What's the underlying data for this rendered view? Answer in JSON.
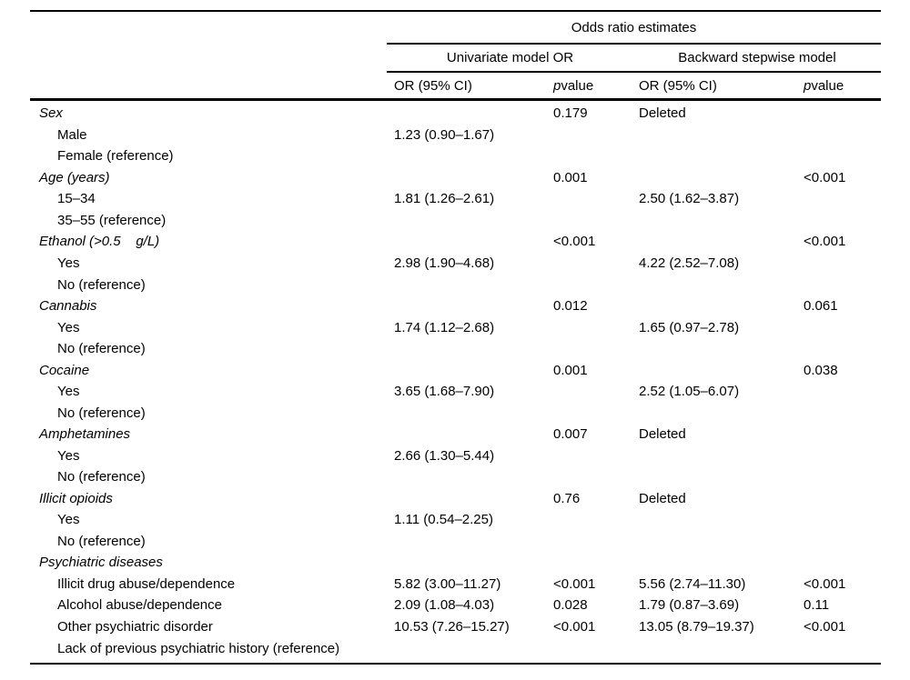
{
  "header": {
    "spanner": "Odds ratio estimates",
    "group_univariate": "Univariate model OR",
    "group_backward": "Backward stepwise model",
    "or_ci": "OR (95% CI)",
    "p": "p",
    "value": " value"
  },
  "rows": [
    {
      "style": "category",
      "label": "Sex",
      "univariate_or": "",
      "univariate_p": "0.179",
      "backward_or": "Deleted",
      "backward_p": ""
    },
    {
      "style": "item",
      "label": "Male",
      "univariate_or": "1.23 (0.90–1.67)",
      "univariate_p": "",
      "backward_or": "",
      "backward_p": ""
    },
    {
      "style": "item",
      "label": "Female (reference)",
      "univariate_or": "",
      "univariate_p": "",
      "backward_or": "",
      "backward_p": ""
    },
    {
      "style": "category",
      "label": "Age (years)",
      "univariate_or": "",
      "univariate_p": "0.001",
      "backward_or": "",
      "backward_p": "<0.001"
    },
    {
      "style": "item",
      "label": "15–34",
      "univariate_or": "1.81 (1.26–2.61)",
      "univariate_p": "",
      "backward_or": "2.50 (1.62–3.87)",
      "backward_p": ""
    },
    {
      "style": "item",
      "label": "35–55 (reference)",
      "univariate_or": "",
      "univariate_p": "",
      "backward_or": "",
      "backward_p": ""
    },
    {
      "style": "category",
      "label": "Ethanol (>0.5    g/L)",
      "univariate_or": "",
      "univariate_p": "<0.001",
      "backward_or": "",
      "backward_p": "<0.001"
    },
    {
      "style": "item",
      "label": "Yes",
      "univariate_or": "2.98 (1.90–4.68)",
      "univariate_p": "",
      "backward_or": "4.22 (2.52–7.08)",
      "backward_p": ""
    },
    {
      "style": "item",
      "label": "No (reference)",
      "univariate_or": "",
      "univariate_p": "",
      "backward_or": "",
      "backward_p": ""
    },
    {
      "style": "category",
      "label": "Cannabis",
      "univariate_or": "",
      "univariate_p": "0.012",
      "backward_or": "",
      "backward_p": "0.061"
    },
    {
      "style": "item",
      "label": "Yes",
      "univariate_or": "1.74 (1.12–2.68)",
      "univariate_p": "",
      "backward_or": "1.65 (0.97–2.78)",
      "backward_p": ""
    },
    {
      "style": "item",
      "label": "No (reference)",
      "univariate_or": "",
      "univariate_p": "",
      "backward_or": "",
      "backward_p": ""
    },
    {
      "style": "category",
      "label": "Cocaine",
      "univariate_or": "",
      "univariate_p": "0.001",
      "backward_or": "",
      "backward_p": "0.038"
    },
    {
      "style": "item",
      "label": "Yes",
      "univariate_or": "3.65 (1.68–7.90)",
      "univariate_p": "",
      "backward_or": "2.52 (1.05–6.07)",
      "backward_p": ""
    },
    {
      "style": "item",
      "label": "No (reference)",
      "univariate_or": "",
      "univariate_p": "",
      "backward_or": "",
      "backward_p": ""
    },
    {
      "style": "category",
      "label": "Amphetamines",
      "univariate_or": "",
      "univariate_p": "0.007",
      "backward_or": "Deleted",
      "backward_p": ""
    },
    {
      "style": "item",
      "label": "Yes",
      "univariate_or": "2.66 (1.30–5.44)",
      "univariate_p": "",
      "backward_or": "",
      "backward_p": ""
    },
    {
      "style": "item",
      "label": "No (reference)",
      "univariate_or": "",
      "univariate_p": "",
      "backward_or": "",
      "backward_p": ""
    },
    {
      "style": "category",
      "label": "Illicit opioids",
      "univariate_or": "",
      "univariate_p": "0.76",
      "backward_or": "Deleted",
      "backward_p": ""
    },
    {
      "style": "item",
      "label": "Yes",
      "univariate_or": "1.11 (0.54–2.25)",
      "univariate_p": "",
      "backward_or": "",
      "backward_p": ""
    },
    {
      "style": "item",
      "label": "No (reference)",
      "univariate_or": "",
      "univariate_p": "",
      "backward_or": "",
      "backward_p": ""
    },
    {
      "style": "category",
      "label": "Psychiatric diseases",
      "univariate_or": "",
      "univariate_p": "",
      "backward_or": "",
      "backward_p": ""
    },
    {
      "style": "item",
      "label": "Illicit drug abuse/dependence",
      "univariate_or": "5.82 (3.00–11.27)",
      "univariate_p": "<0.001",
      "backward_or": "5.56 (2.74–11.30)",
      "backward_p": "<0.001"
    },
    {
      "style": "item",
      "label": "Alcohol abuse/dependence",
      "univariate_or": "2.09 (1.08–4.03)",
      "univariate_p": "0.028",
      "backward_or": "1.79 (0.87–3.69)",
      "backward_p": "0.11"
    },
    {
      "style": "item",
      "label": "Other psychiatric disorder",
      "univariate_or": "10.53 (7.26–15.27)",
      "univariate_p": "<0.001",
      "backward_or": "13.05 (8.79–19.37)",
      "backward_p": "<0.001"
    },
    {
      "style": "item",
      "label": "Lack of previous psychiatric history (reference)",
      "univariate_or": "",
      "univariate_p": "",
      "backward_or": "",
      "backward_p": ""
    }
  ]
}
